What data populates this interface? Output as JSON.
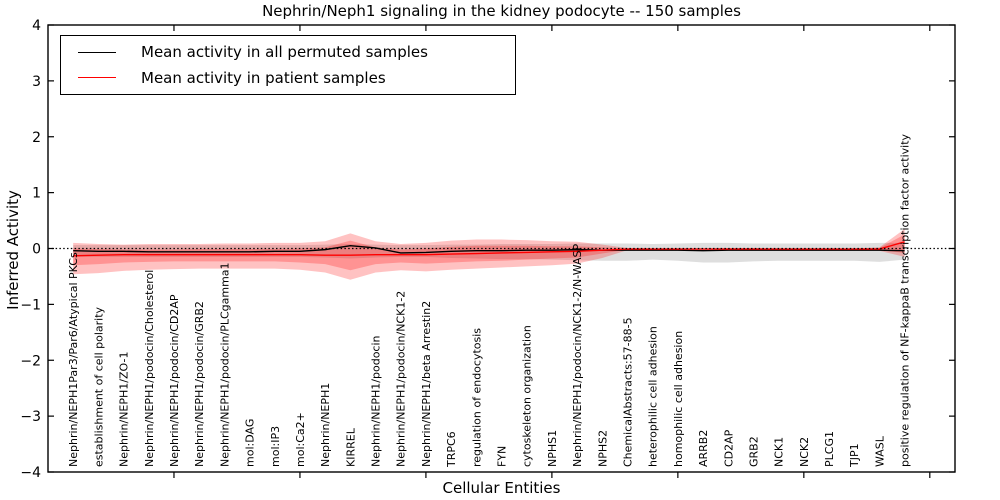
{
  "figure": {
    "title": "Nephrin/Neph1 signaling in the kidney podocyte -- 150 samples",
    "xlabel": "Cellular Entities",
    "ylabel": "Inferred Activity"
  },
  "legend": {
    "items": [
      {
        "label": "Mean activity in all permuted samples",
        "color": "#000000"
      },
      {
        "label": "Mean activity in patient samples",
        "color": "#ff0000"
      }
    ]
  },
  "chart_data": {
    "type": "line",
    "title": "Nephrin/Neph1 signaling in the kidney podocyte -- 150 samples",
    "xlabel": "Cellular Entities",
    "ylabel": "Inferred Activity",
    "xlim": [
      0,
      36
    ],
    "ylim": [
      -4,
      4
    ],
    "yticks": [
      -4,
      -3,
      -2,
      -1,
      0,
      1,
      2,
      3,
      4
    ],
    "xticks": [
      5,
      10,
      15,
      20,
      25,
      30,
      35
    ],
    "grid": false,
    "legend_position": "upper left",
    "zero_reference_line": {
      "y": 0,
      "style": "dotted",
      "color": "#000000"
    },
    "categories": [
      "Nephrin/NEPH1Par3/Par6/Atypical PKCs",
      "establishment of cell polarity",
      "Nephrin/NEPH1/ZO-1",
      "Nephrin/NEPH1/podocin/Cholesterol",
      "Nephrin/NEPH1/podocin/CD2AP",
      "Nephrin/NEPH1/podocin/GRB2",
      "Nephrin/NEPH1/podocin/PLCgamma1",
      "mol:DAG",
      "mol:IP3",
      "mol:Ca2+",
      "Nephrin/NEPH1",
      "KIRREL",
      "Nephrin/NEPH1/podocin",
      "Nephrin/NEPH1/podocin/NCK1-2",
      "Nephrin/NEPH1/beta Arrestin2",
      "TRPC6",
      "regulation of endocytosis",
      "FYN",
      "cytoskeleton organization",
      "NPHS1",
      "Nephrin/NEPH1/podocin/NCK1-2/N-WASP",
      "NPHS2",
      "ChemicalAbstracts:57-88-5",
      "heterophilic cell adhesion",
      "homophilic cell adhesion",
      "ARRB2",
      "CD2AP",
      "GRB2",
      "NCK1",
      "NCK2",
      "PLCG1",
      "TJP1",
      "WASL",
      "positive regulation of NF-kappaB transcription factor activity"
    ],
    "series": [
      {
        "name": "Mean activity in all permuted samples",
        "color": "#000000",
        "values": [
          -0.04,
          -0.05,
          -0.05,
          -0.06,
          -0.06,
          -0.06,
          -0.06,
          -0.06,
          -0.05,
          -0.05,
          -0.02,
          0.05,
          0.01,
          -0.08,
          -0.07,
          -0.05,
          -0.04,
          -0.04,
          -0.03,
          -0.03,
          -0.02,
          -0.03,
          -0.03,
          -0.03,
          -0.03,
          -0.04,
          -0.03,
          -0.03,
          -0.03,
          -0.03,
          -0.03,
          -0.03,
          -0.03,
          -0.04
        ]
      },
      {
        "name": "Mean activity in patient samples",
        "color": "#ff0000",
        "values": [
          -0.13,
          -0.12,
          -0.11,
          -0.11,
          -0.11,
          -0.11,
          -0.11,
          -0.11,
          -0.11,
          -0.11,
          -0.12,
          -0.12,
          -0.11,
          -0.11,
          -0.11,
          -0.1,
          -0.09,
          -0.08,
          -0.07,
          -0.06,
          -0.05,
          -0.03,
          -0.01,
          -0.01,
          -0.01,
          -0.01,
          -0.01,
          -0.01,
          -0.01,
          -0.01,
          -0.01,
          -0.01,
          -0.01,
          0.12
        ]
      }
    ],
    "bands": [
      {
        "name": "permuted-samples-range",
        "color": "#000000",
        "opacity": 0.13,
        "top": [
          0.06,
          0.06,
          0.06,
          0.06,
          0.06,
          0.06,
          0.06,
          0.06,
          0.06,
          0.06,
          0.07,
          0.08,
          0.07,
          0.06,
          0.06,
          0.07,
          0.07,
          0.08,
          0.08,
          0.08,
          0.09,
          0.09,
          0.09,
          0.08,
          0.09,
          0.1,
          0.1,
          0.09,
          0.09,
          0.09,
          0.09,
          0.09,
          0.1,
          0.1
        ],
        "bottom": [
          -0.15,
          -0.15,
          -0.15,
          -0.15,
          -0.15,
          -0.15,
          -0.15,
          -0.15,
          -0.15,
          -0.15,
          -0.16,
          -0.18,
          -0.16,
          -0.15,
          -0.15,
          -0.17,
          -0.18,
          -0.19,
          -0.19,
          -0.2,
          -0.21,
          -0.22,
          -0.22,
          -0.2,
          -0.22,
          -0.25,
          -0.25,
          -0.23,
          -0.22,
          -0.22,
          -0.22,
          -0.22,
          -0.24,
          -0.2
        ]
      },
      {
        "name": "patient-samples-range-outer",
        "color": "#ff0000",
        "opacity": 0.24,
        "top": [
          0.1,
          0.08,
          0.07,
          0.08,
          0.08,
          0.08,
          0.09,
          0.09,
          0.1,
          0.1,
          0.13,
          0.27,
          0.13,
          0.08,
          0.1,
          0.14,
          0.16,
          0.16,
          0.15,
          0.13,
          0.12,
          0.07,
          0.01,
          0.0,
          0.0,
          0.0,
          0.01,
          0.01,
          0.0,
          0.0,
          0.0,
          0.0,
          0.02,
          0.35
        ],
        "bottom": [
          -0.46,
          -0.44,
          -0.4,
          -0.38,
          -0.37,
          -0.36,
          -0.36,
          -0.36,
          -0.36,
          -0.38,
          -0.43,
          -0.56,
          -0.43,
          -0.39,
          -0.41,
          -0.38,
          -0.36,
          -0.34,
          -0.32,
          -0.3,
          -0.27,
          -0.17,
          -0.03,
          -0.02,
          -0.02,
          -0.02,
          -0.03,
          -0.03,
          -0.02,
          -0.02,
          -0.02,
          -0.02,
          -0.04,
          -0.15
        ]
      },
      {
        "name": "patient-samples-range-inner",
        "color": "#ff0000",
        "opacity": 0.24,
        "top": [
          0.0,
          -0.01,
          -0.02,
          -0.02,
          -0.02,
          -0.01,
          -0.01,
          -0.01,
          -0.01,
          0.0,
          0.02,
          0.14,
          0.02,
          -0.02,
          0.0,
          0.03,
          0.05,
          0.05,
          0.05,
          0.04,
          0.04,
          0.02,
          0.0,
          0.0,
          0.0,
          0.0,
          0.0,
          0.0,
          0.0,
          0.0,
          0.0,
          0.0,
          0.01,
          0.25
        ],
        "bottom": [
          -0.3,
          -0.28,
          -0.25,
          -0.24,
          -0.23,
          -0.23,
          -0.23,
          -0.23,
          -0.23,
          -0.25,
          -0.28,
          -0.39,
          -0.28,
          -0.25,
          -0.27,
          -0.25,
          -0.23,
          -0.22,
          -0.2,
          -0.18,
          -0.16,
          -0.09,
          -0.02,
          -0.01,
          -0.01,
          -0.01,
          -0.02,
          -0.02,
          -0.01,
          -0.01,
          -0.01,
          -0.01,
          -0.03,
          -0.08
        ]
      }
    ]
  }
}
